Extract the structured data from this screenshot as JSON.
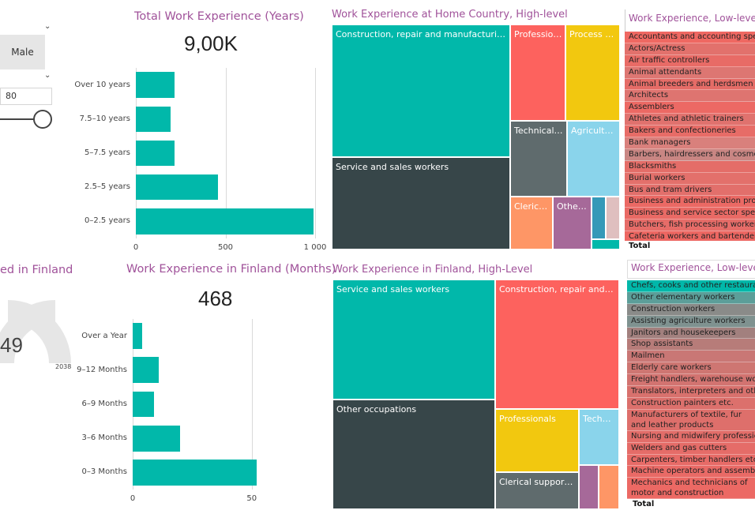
{
  "colors": {
    "teal": "#01b8aa",
    "dark": "#374649",
    "red": "#fd625e",
    "yellow": "#f2c80f",
    "gray": "#5f6b6d",
    "lightblue": "#8ad4eb",
    "orange": "#fe9666",
    "purple": "#a66999",
    "blue": "#3599b8",
    "pink": "#dfbfbf",
    "title": "#a0529a"
  },
  "slicers": {
    "gender_value": "Male",
    "age_value": "80"
  },
  "years_card": {
    "title": "Total Work Experience (Years)",
    "kpi": "9,00K",
    "x_ticks": [
      "0",
      "500",
      "1 000"
    ]
  },
  "months_card": {
    "title": "Work Experience in Finland (Months)",
    "kpi": "468",
    "x_ticks": [
      "0",
      "50"
    ]
  },
  "gauge": {
    "title_fragment": "ed in Finland",
    "value_fragment": "49",
    "max_label": "2038",
    "fraction": 0.55
  },
  "home_treemap": {
    "title": "Work Experience at Home Country, High-level",
    "tiles": [
      {
        "label": "Construction, repair and manufacturing wor...",
        "color": "#01b8aa"
      },
      {
        "label": "Service and sales workers",
        "color": "#374649"
      },
      {
        "label": "Profession...",
        "color": "#fd625e"
      },
      {
        "label": "Process an...",
        "color": "#f2c80f"
      },
      {
        "label": "Technical a...",
        "color": "#5f6b6d"
      },
      {
        "label": "Agricultur...",
        "color": "#8ad4eb"
      },
      {
        "label": "Clerical ...",
        "color": "#fe9666"
      },
      {
        "label": "Other ...",
        "color": "#a66999"
      },
      {
        "label": "",
        "color": "#3599b8"
      },
      {
        "label": "",
        "color": "#dfbfbf"
      },
      {
        "label": "",
        "color": "#01b8aa"
      }
    ]
  },
  "finland_treemap": {
    "title": "Work Experience in Finland, High-Level",
    "tiles": [
      {
        "label": "Service and sales workers",
        "color": "#01b8aa"
      },
      {
        "label": "Other occupations",
        "color": "#374649"
      },
      {
        "label": "Construction, repair and man...",
        "color": "#fd625e"
      },
      {
        "label": "Professionals",
        "color": "#f2c80f"
      },
      {
        "label": "Techni...",
        "color": "#8ad4eb"
      },
      {
        "label": "Clerical support w...",
        "color": "#5f6b6d"
      },
      {
        "label": "",
        "color": "#a66999"
      },
      {
        "label": "",
        "color": "#fe9666"
      }
    ]
  },
  "home_low": {
    "title": "Work Experience, Low-level",
    "items": [
      "Accountants and accounting specialists",
      "Actors/Actress",
      "Air traffic controllers",
      "Animal attendants",
      "Animal breeders and herdsmen",
      "Architects",
      "Assemblers",
      "Athletes and athletic trainers",
      "Bakers and confectioneries",
      "Bank managers",
      "Barbers, hairdressers and cosmetologists",
      "Blacksmiths",
      "Burial workers",
      "Bus and tram drivers",
      "Business and administration professionals",
      "Business and service sector specialists",
      "Butchers, fish processing workers etc.",
      "Cafeteria workers and bartenders"
    ],
    "total_label": "Total"
  },
  "finland_low": {
    "title": "Work Experience, Low-level",
    "items": [
      "Chefs, cooks and other restaurant workers",
      "Other elementary workers",
      "Construction workers",
      "Assisting agriculture workers",
      "Janitors and housekeepers",
      "Shop assistants",
      "Mailmen",
      "Elderly care workers",
      "Freight handlers, warehouse workers etc.",
      "Translators, interpreters and other linguists",
      "Construction painters etc.",
      "Manufacturers of textile, fur and leather products",
      "Nursing and midwifery professionals",
      "Welders and gas cutters",
      "Carpenters, timber handlers etc.",
      "Machine operators and assemblers",
      "Mechanics and technicians of motor and construction vehicles"
    ],
    "total_label": "Total"
  },
  "chart_data": [
    {
      "type": "bar",
      "orientation": "horizontal",
      "title": "Total Work Experience (Years)",
      "categories": [
        "Over 10 years",
        "7.5–10 years",
        "5–7.5 years",
        "2.5–5 years",
        "0–2.5 years"
      ],
      "values": [
        215,
        195,
        215,
        460,
        990
      ],
      "xlim": [
        0,
        1000
      ],
      "xlabel": "",
      "ylabel": ""
    },
    {
      "type": "bar",
      "orientation": "horizontal",
      "title": "Work Experience in Finland (Months)",
      "categories": [
        "Over a Year",
        "9–12 Months",
        "6–9 Months",
        "3–6 Months",
        "0–3 Months"
      ],
      "values": [
        4,
        11,
        9,
        20,
        52
      ],
      "xlim": [
        0,
        65
      ],
      "xlabel": "",
      "ylabel": ""
    }
  ]
}
